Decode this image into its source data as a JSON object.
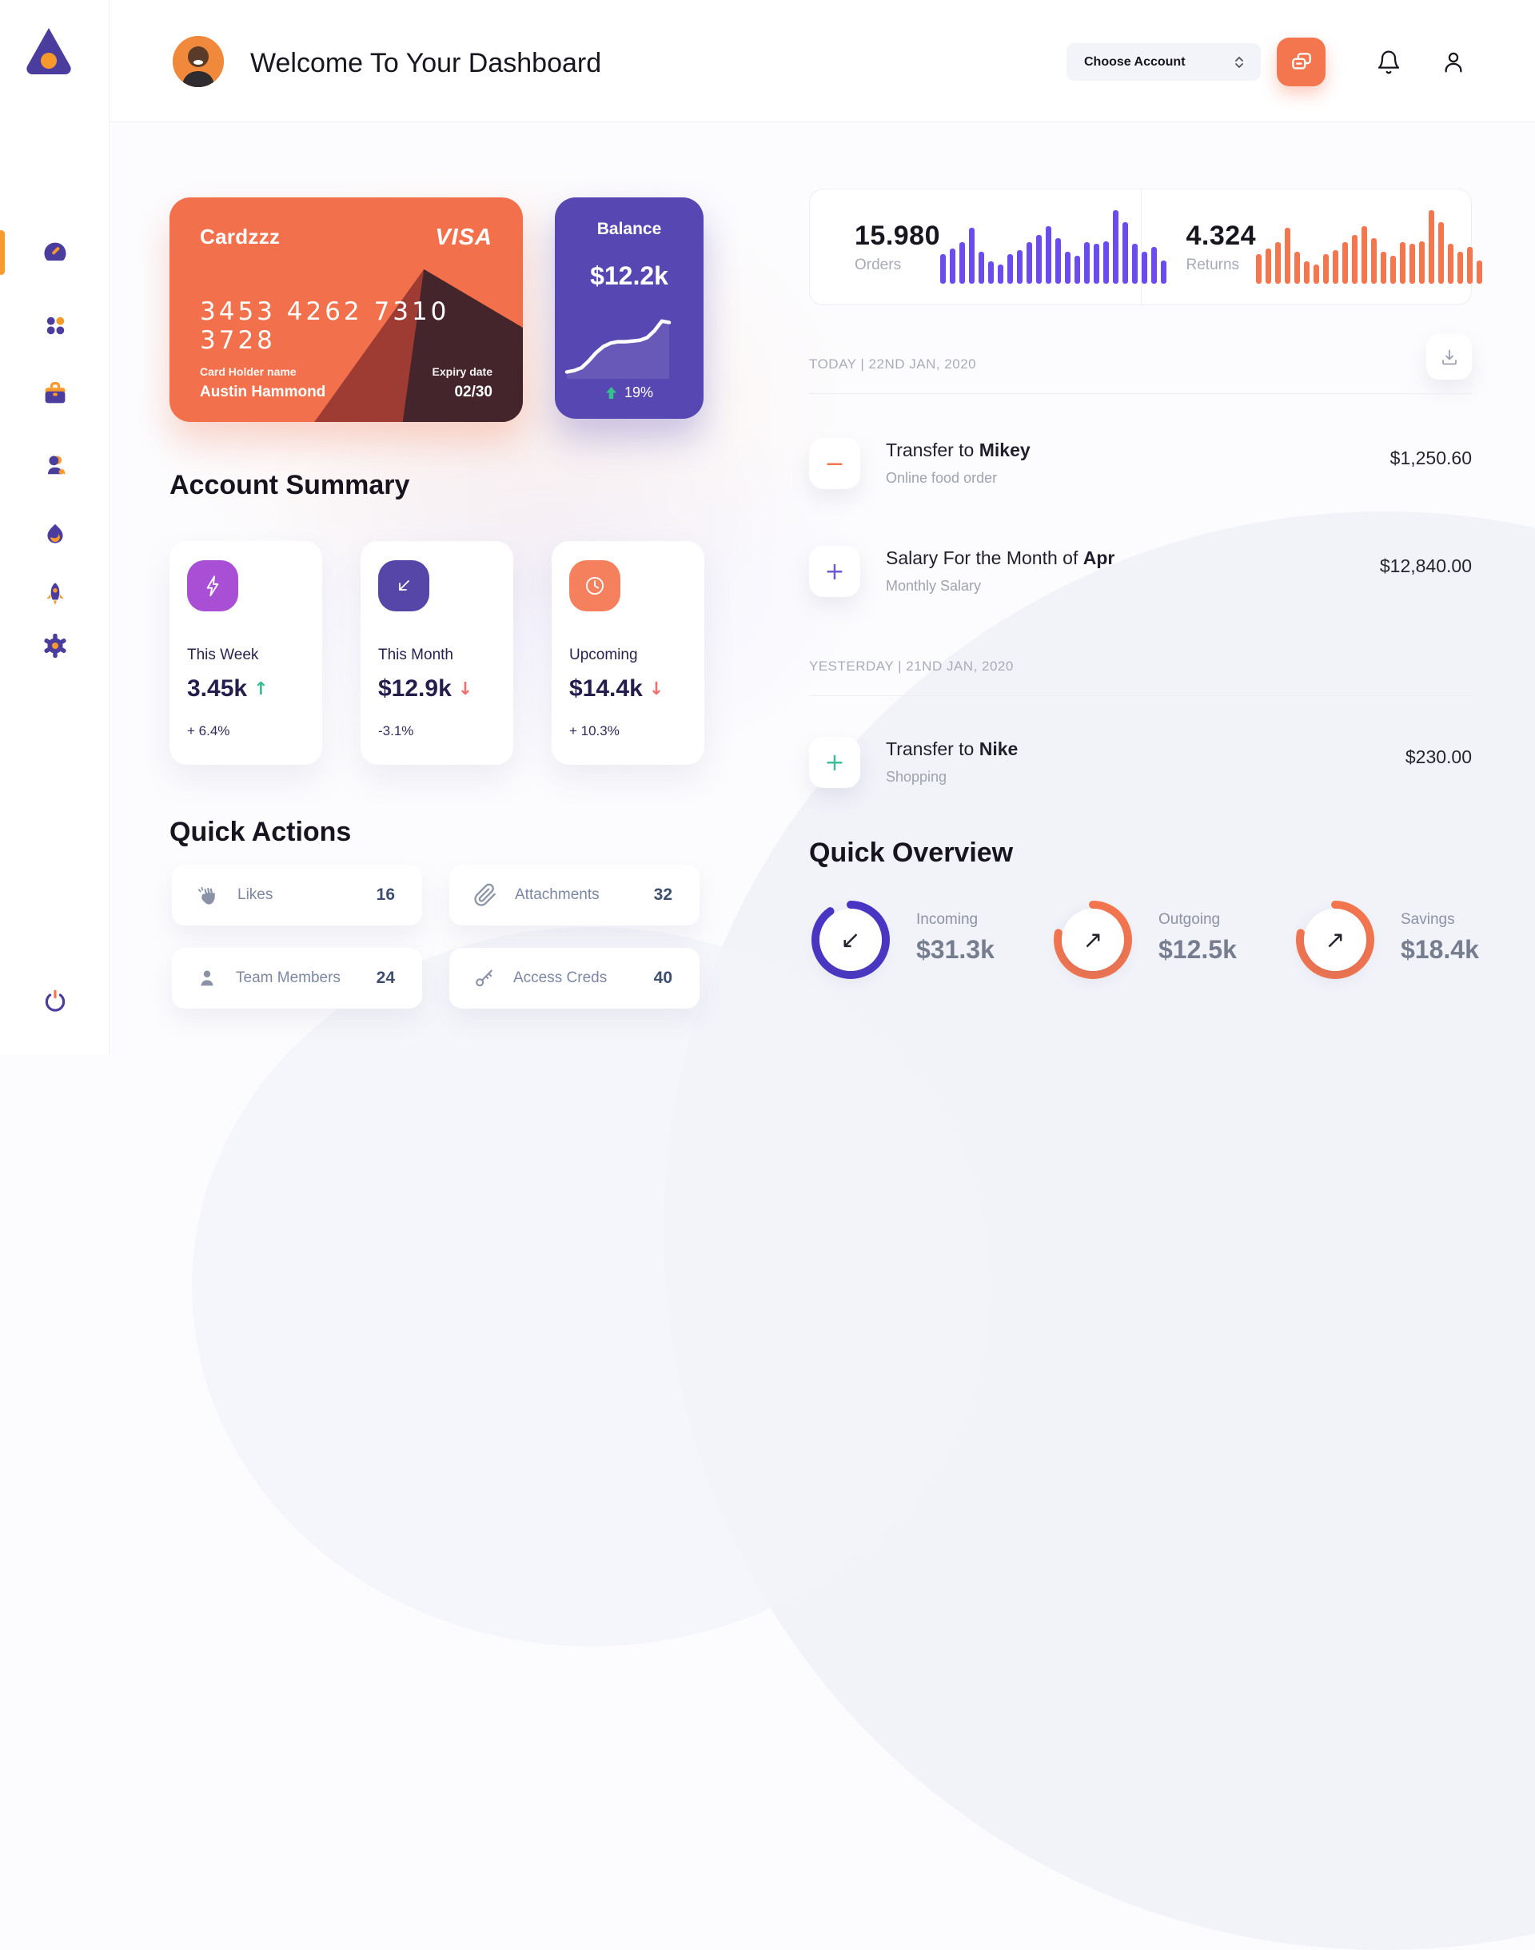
{
  "header": {
    "title": "Welcome To Your Dashboard",
    "account_select": {
      "label": "Choose Account"
    }
  },
  "sidebar": {
    "items": [
      {
        "id": "dashboard",
        "icon": "speedometer-icon",
        "active": true
      },
      {
        "id": "apps",
        "icon": "grid-dots-icon",
        "active": false
      },
      {
        "id": "work",
        "icon": "briefcase-icon",
        "active": false
      },
      {
        "id": "team",
        "icon": "user-icon",
        "active": false
      },
      {
        "id": "activity",
        "icon": "flame-icon",
        "active": false
      },
      {
        "id": "launch",
        "icon": "rocket-icon",
        "active": false
      },
      {
        "id": "settings",
        "icon": "gear-icon",
        "active": false
      }
    ],
    "logout_icon": "power-icon"
  },
  "credit_card": {
    "label": "Cardzzz",
    "brand": "VISA",
    "number": "3453 4262 7310 3728",
    "holder_label": "Card Holder name",
    "holder_name": "Austin Hammond",
    "expiry_label": "Expiry date",
    "expiry": "02/30",
    "bg_color": "#F2714C"
  },
  "balance_card": {
    "title": "Balance",
    "value": "$12.2k",
    "trend": "19%",
    "trend_direction": "up",
    "trend_color": "#35C08E",
    "bg_color": "#5747B2",
    "sparkline": [
      10,
      12,
      16,
      26,
      38,
      47,
      52,
      54,
      54,
      55,
      56,
      60,
      70,
      84,
      82
    ]
  },
  "account_summary": {
    "title": "Account Summary",
    "cards": [
      {
        "icon": "lightning-icon",
        "icon_bg": "#A94FD6",
        "label": "This Week",
        "value": "3.45k",
        "arrow": "↑",
        "arrow_color": "#2FBE8F",
        "change": "+ 6.4%"
      },
      {
        "icon": "arrow-down-left-icon",
        "icon_bg": "#5646A8",
        "label": "This Month",
        "value": "$12.9k",
        "arrow": "↓",
        "arrow_color": "#F26D6D",
        "change": "-3.1%"
      },
      {
        "icon": "clock-icon",
        "icon_bg": "#F4805D",
        "label": "Upcoming",
        "value": "$14.4k",
        "arrow": "↓",
        "arrow_color": "#F26D6D",
        "change": "+ 10.3%"
      }
    ]
  },
  "quick_actions": {
    "title": "Quick Actions",
    "items": [
      {
        "icon": "clap-icon",
        "label": "Likes",
        "count": "16"
      },
      {
        "icon": "paperclip-icon",
        "label": "Attachments",
        "count": "32"
      },
      {
        "icon": "member-icon",
        "label": "Team Members",
        "count": "24"
      },
      {
        "icon": "key-icon",
        "label": "Access Creds",
        "count": "40"
      }
    ]
  },
  "stats": {
    "orders": {
      "value": "15.980",
      "label": "Orders",
      "bar_color": "#6A4CEF"
    },
    "returns": {
      "value": "4.324",
      "label": "Returns",
      "bar_color": "#F4764F"
    },
    "bars": [
      40,
      48,
      56,
      76,
      44,
      30,
      26,
      40,
      46,
      56,
      66,
      78,
      62,
      44,
      38,
      56,
      54,
      58,
      100,
      84,
      54,
      44,
      50,
      32
    ]
  },
  "transactions": {
    "groups": [
      {
        "date_label": "TODAY | 22ND JAN, 2020",
        "items": [
          {
            "sign": "−",
            "sign_color": "#F4764F",
            "title_prefix": "Transfer to ",
            "title_bold": "Mikey",
            "subtitle": "Online food order",
            "amount": "$1,250.60"
          },
          {
            "sign": "+",
            "sign_color": "#6C5BD4",
            "title_prefix": "Salary For the Month of ",
            "title_bold": "Apr",
            "subtitle": "Monthly Salary",
            "amount": "$12,840.00"
          }
        ]
      },
      {
        "date_label": "YESTERDAY | 21ND JAN, 2020",
        "items": [
          {
            "sign": "+",
            "sign_color": "#3DBF9B",
            "title_prefix": "Transfer to ",
            "title_bold": "Nike",
            "subtitle": "Shopping",
            "amount": "$230.00"
          }
        ]
      }
    ]
  },
  "quick_overview": {
    "title": "Quick Overview",
    "items": [
      {
        "label": "Incoming",
        "value": "$31.3k",
        "ring_color": "#4936C6",
        "pct": 90,
        "arrow": "↙"
      },
      {
        "label": "Outgoing",
        "value": "$12.5k",
        "ring_color": "#F4764F",
        "pct": 78,
        "arrow": "↗"
      },
      {
        "label": "Savings",
        "value": "$18.4k",
        "ring_color": "#F4764F",
        "pct": 78,
        "arrow": "↗"
      }
    ]
  }
}
